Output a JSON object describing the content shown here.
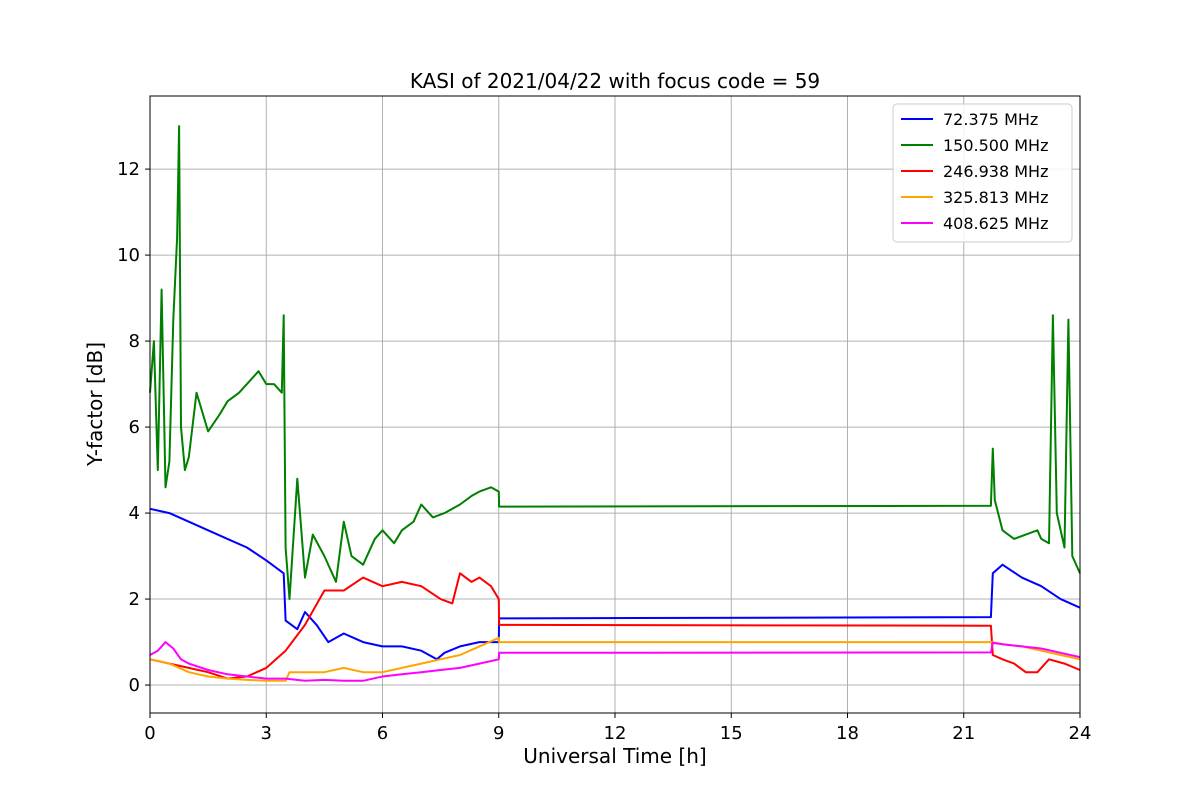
{
  "chart_data": {
    "type": "line",
    "title": "KASI of 2021/04/22 with focus code = 59",
    "xlabel": "Universal Time [h]",
    "ylabel": "Y-factor [dB]",
    "xlim": [
      0,
      24
    ],
    "ylim": [
      -0.65,
      13.7
    ],
    "xticks": [
      0,
      3,
      6,
      9,
      12,
      15,
      18,
      21,
      24
    ],
    "yticks": [
      0,
      2,
      4,
      6,
      8,
      10,
      12
    ],
    "grid": true,
    "legend_position": "top-right",
    "series": [
      {
        "name": " 72.375 MHz",
        "color": "#0000ff",
        "x": [
          0,
          0.5,
          1,
          1.5,
          2,
          2.5,
          3,
          3.45,
          3.5,
          3.8,
          4.0,
          4.3,
          4.6,
          5.0,
          5.5,
          6.0,
          6.5,
          7.0,
          7.4,
          7.6,
          8.0,
          8.5,
          9.0,
          9.01,
          21.7,
          21.75,
          22.0,
          22.5,
          23.0,
          23.5,
          24.0
        ],
        "y": [
          4.1,
          4.0,
          3.8,
          3.6,
          3.4,
          3.2,
          2.9,
          2.6,
          1.5,
          1.3,
          1.7,
          1.4,
          1.0,
          1.2,
          1.0,
          0.9,
          0.9,
          0.8,
          0.6,
          0.75,
          0.9,
          1.0,
          1.0,
          1.55,
          1.58,
          2.6,
          2.8,
          2.5,
          2.3,
          2.0,
          1.8
        ]
      },
      {
        "name": "150.500 MHz",
        "color": "#008000",
        "x": [
          0,
          0.1,
          0.2,
          0.3,
          0.4,
          0.5,
          0.6,
          0.7,
          0.75,
          0.8,
          0.9,
          1.0,
          1.2,
          1.5,
          1.8,
          2.0,
          2.3,
          2.5,
          2.8,
          3.0,
          3.2,
          3.4,
          3.45,
          3.5,
          3.6,
          3.8,
          4.0,
          4.2,
          4.5,
          4.8,
          5.0,
          5.2,
          5.5,
          5.8,
          6.0,
          6.3,
          6.5,
          6.8,
          7.0,
          7.3,
          7.6,
          8.0,
          8.3,
          8.5,
          8.8,
          9.0,
          9.01,
          21.7,
          21.75,
          21.8,
          22.0,
          22.3,
          22.6,
          22.9,
          23.0,
          23.2,
          23.3,
          23.4,
          23.6,
          23.7,
          23.8,
          24.0
        ],
        "y": [
          6.8,
          8.0,
          5.0,
          9.2,
          4.6,
          5.2,
          8.5,
          10.4,
          13.0,
          6.0,
          5.0,
          5.3,
          6.8,
          5.9,
          6.3,
          6.6,
          6.8,
          7.0,
          7.3,
          7.0,
          7.0,
          6.8,
          8.6,
          3.2,
          2.0,
          4.8,
          2.5,
          3.5,
          3.0,
          2.4,
          3.8,
          3.0,
          2.8,
          3.4,
          3.6,
          3.3,
          3.6,
          3.8,
          4.2,
          3.9,
          4.0,
          4.2,
          4.4,
          4.5,
          4.6,
          4.5,
          4.15,
          4.17,
          5.5,
          4.3,
          3.6,
          3.4,
          3.5,
          3.6,
          3.4,
          3.3,
          8.6,
          4.0,
          3.2,
          8.5,
          3.0,
          2.6
        ]
      },
      {
        "name": "246.938 MHz",
        "color": "#ff0000",
        "x": [
          0,
          0.5,
          1,
          1.5,
          2,
          2.5,
          3,
          3.5,
          4.0,
          4.5,
          5.0,
          5.5,
          6.0,
          6.5,
          7.0,
          7.5,
          7.8,
          8.0,
          8.3,
          8.5,
          8.8,
          9.0,
          9.01,
          21.7,
          21.75,
          22.0,
          22.3,
          22.6,
          22.9,
          23.2,
          23.6,
          24.0
        ],
        "y": [
          0.6,
          0.5,
          0.4,
          0.3,
          0.15,
          0.2,
          0.4,
          0.8,
          1.4,
          2.2,
          2.2,
          2.5,
          2.3,
          2.4,
          2.3,
          2.0,
          1.9,
          2.6,
          2.4,
          2.5,
          2.3,
          2.0,
          1.4,
          1.38,
          0.7,
          0.6,
          0.5,
          0.3,
          0.3,
          0.6,
          0.5,
          0.35
        ]
      },
      {
        "name": "325.813 MHz",
        "color": "#ffa500",
        "x": [
          0,
          0.5,
          1,
          1.5,
          2,
          2.5,
          3,
          3.5,
          3.6,
          4.0,
          4.5,
          5.0,
          5.5,
          6.0,
          6.5,
          7.0,
          7.5,
          8.0,
          8.5,
          9.0,
          9.01,
          21.7,
          21.75,
          22.0,
          22.5,
          23.0,
          23.5,
          24.0
        ],
        "y": [
          0.6,
          0.5,
          0.3,
          0.2,
          0.15,
          0.12,
          0.1,
          0.1,
          0.3,
          0.3,
          0.3,
          0.4,
          0.3,
          0.3,
          0.4,
          0.5,
          0.6,
          0.7,
          0.9,
          1.1,
          1.0,
          1.0,
          1.0,
          0.95,
          0.9,
          0.8,
          0.7,
          0.6
        ]
      },
      {
        "name": "408.625 MHz",
        "color": "#ff00ff",
        "x": [
          0,
          0.2,
          0.4,
          0.6,
          0.8,
          1.0,
          1.5,
          2.0,
          2.5,
          3.0,
          3.5,
          4.0,
          4.5,
          5.0,
          5.5,
          6.0,
          6.5,
          7.0,
          7.5,
          8.0,
          8.5,
          9.0,
          9.01,
          21.7,
          21.75,
          22.0,
          22.5,
          23.0,
          23.5,
          24.0
        ],
        "y": [
          0.7,
          0.8,
          1.0,
          0.85,
          0.6,
          0.5,
          0.35,
          0.25,
          0.2,
          0.15,
          0.15,
          0.1,
          0.12,
          0.1,
          0.1,
          0.2,
          0.25,
          0.3,
          0.35,
          0.4,
          0.5,
          0.6,
          0.75,
          0.76,
          0.98,
          0.95,
          0.9,
          0.85,
          0.75,
          0.65
        ]
      }
    ]
  }
}
